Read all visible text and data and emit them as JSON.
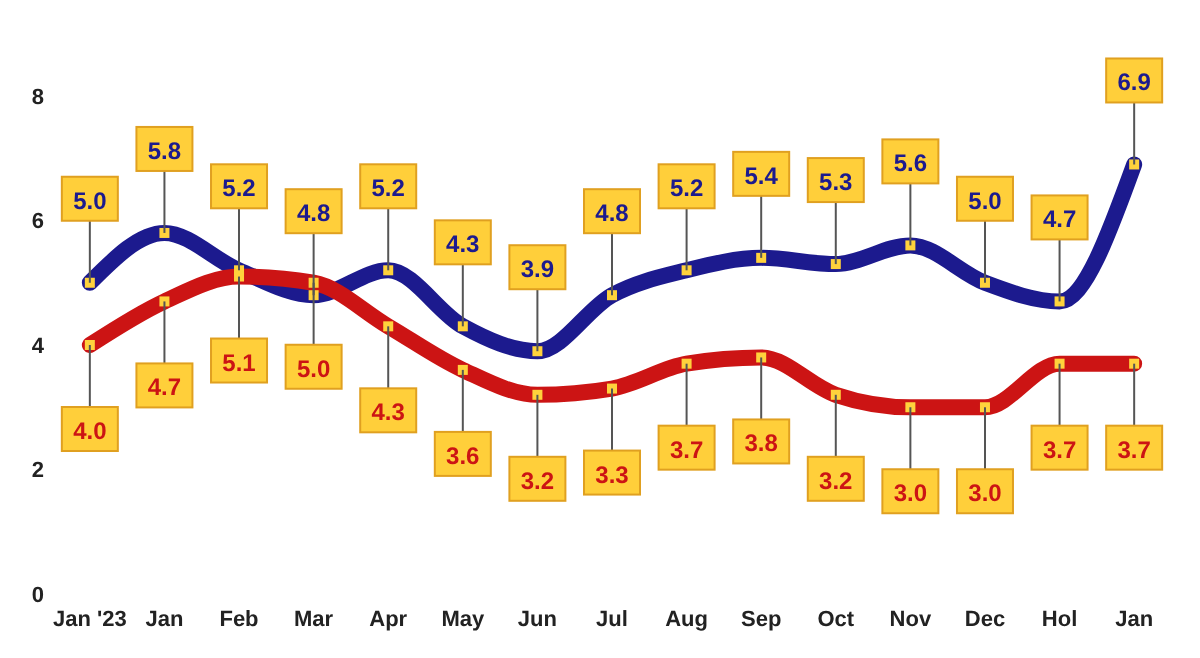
{
  "chart_data": {
    "type": "line",
    "categories": [
      "Jan '23",
      "Jan",
      "Feb",
      "Mar",
      "Apr",
      "May",
      "Jun",
      "Jul",
      "Aug",
      "Sep",
      "Oct",
      "Nov",
      "Dec",
      "Hol",
      "Jan"
    ],
    "series": [
      {
        "color": "#1c1a8e",
        "values": [
          5.0,
          5.8,
          5.2,
          4.8,
          5.2,
          4.3,
          3.9,
          4.8,
          5.2,
          5.4,
          5.3,
          5.6,
          5.0,
          4.7,
          6.9
        ],
        "value_labels": [
          "5.0",
          "5.8",
          "5.2",
          "4.8",
          "5.2",
          "4.3",
          "3.9",
          "4.8",
          "5.2",
          "5.4",
          "5.3",
          "5.6",
          "5.0",
          "4.7",
          "6.9"
        ]
      },
      {
        "color": "#cc1414",
        "values": [
          4.0,
          4.7,
          5.1,
          5.0,
          4.3,
          3.6,
          3.2,
          3.3,
          3.7,
          3.8,
          3.2,
          3.0,
          3.0,
          3.7,
          3.7
        ],
        "value_labels": [
          "4.0",
          "4.7",
          "5.1",
          "5.0",
          "4.3",
          "3.6",
          "3.2",
          "3.3",
          "3.7",
          "3.8",
          "3.2",
          "3.0",
          "3.0",
          "3.7",
          "3.7"
        ]
      }
    ],
    "ylim": [
      0,
      8
    ],
    "yticks": [
      0,
      2,
      4,
      6,
      8
    ],
    "grid": false,
    "marker": "square",
    "line_style": "solid"
  }
}
